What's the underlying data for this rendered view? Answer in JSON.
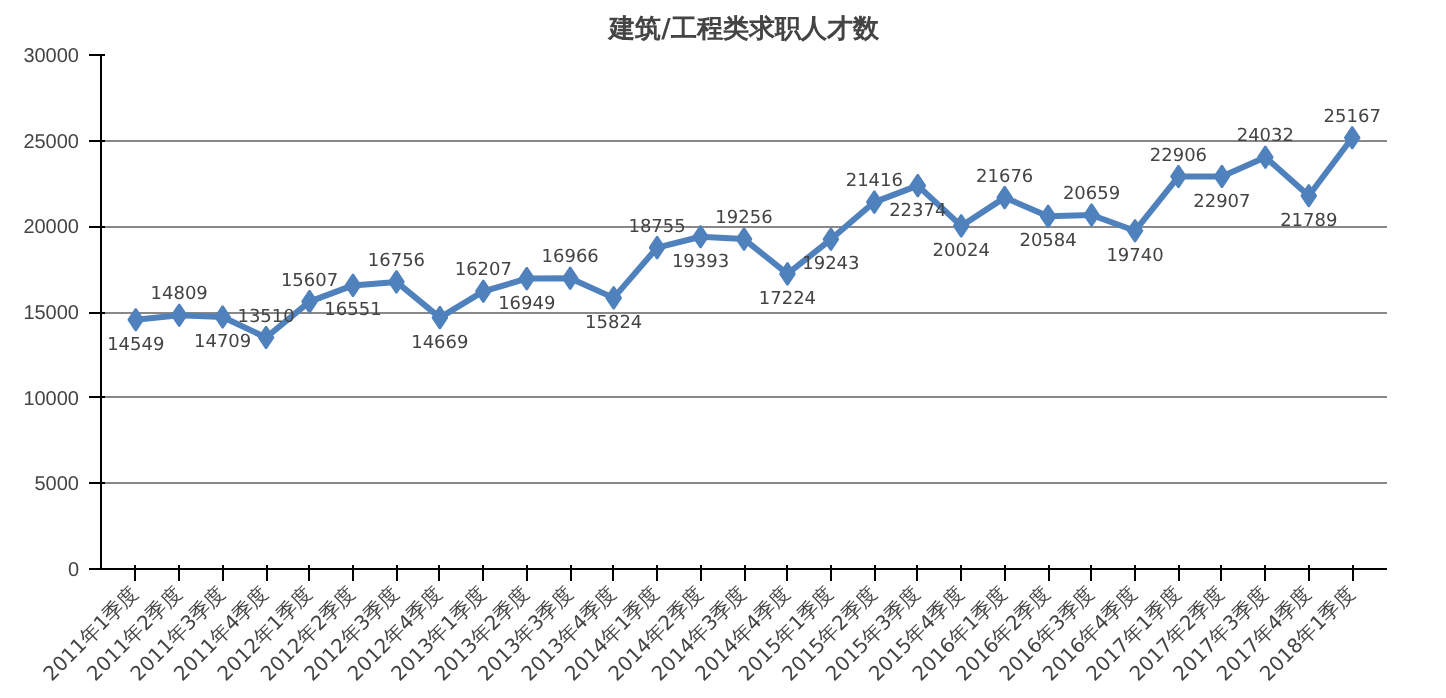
{
  "chart_data": {
    "type": "line",
    "title": "建筑/工程类求职人才数",
    "categories": [
      "2011年1季度",
      "2011年2季度",
      "2011年3季度",
      "2011年4季度",
      "2012年1季度",
      "2012年2季度",
      "2012年3季度",
      "2012年4季度",
      "2013年1季度",
      "2013年2季度",
      "2013年3季度",
      "2013年4季度",
      "2014年1季度",
      "2014年2季度",
      "2014年3季度",
      "2014年4季度",
      "2015年1季度",
      "2015年2季度",
      "2015年3季度",
      "2015年4季度",
      "2016年1季度",
      "2016年2季度",
      "2016年3季度",
      "2016年4季度",
      "2017年1季度",
      "2017年2季度",
      "2017年3季度",
      "2017年4季度",
      "2018年1季度"
    ],
    "series": [
      {
        "color": "#4f81bd",
        "values": [
          14549,
          14809,
          14709,
          13510,
          15607,
          16551,
          16756,
          14669,
          16207,
          16949,
          16966,
          15824,
          18755,
          19393,
          19256,
          17224,
          19243,
          21416,
          22374,
          20024,
          21676,
          20584,
          20659,
          19740,
          22906,
          22907,
          24032,
          21789,
          25167
        ]
      }
    ],
    "ylim": [
      0,
      30000
    ],
    "yticks": [
      0,
      5000,
      10000,
      15000,
      20000,
      25000,
      30000
    ],
    "grid": "y",
    "marker": "diamond",
    "line_style": "solid",
    "data_labels": true
  }
}
